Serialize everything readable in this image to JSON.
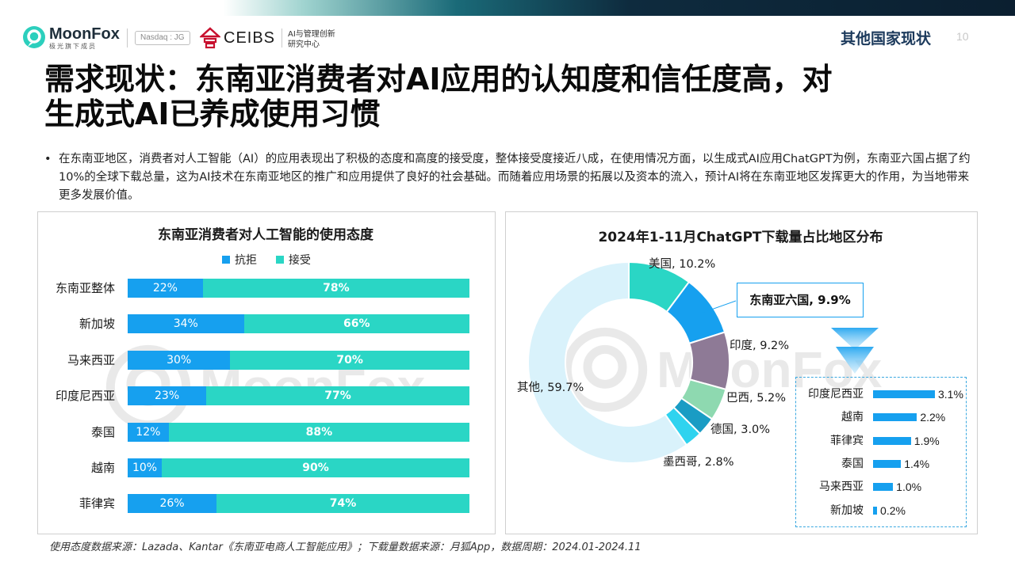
{
  "header": {
    "logo_name": "MoonFox",
    "logo_sub": "极光旗下成员",
    "nasdaq": "Nasdaq : JG",
    "ceibs_name": "CEIBS",
    "ceibs_sub_line1": "AI与管理创新",
    "ceibs_sub_line2": "研究中心",
    "section": "其他国家现状",
    "page": "10"
  },
  "title": {
    "line1": "需求现状：东南亚消费者对AI应用的认知度和信任度高，对",
    "line2": "生成式AI已养成使用习惯"
  },
  "bullet": {
    "dot": "•",
    "text": "在东南亚地区，消费者对人工智能（AI）的应用表现出了积极的态度和高度的接受度，整体接受度接近八成，在使用情况方面，以生成式AI应用ChatGPT为例，东南亚六国占据了约10%的全球下载总量，这为AI技术在东南亚地区的推广和应用提供了良好的社会基础。而随着应用场景的拓展以及资本的流入，预计AI将在东南亚地区发挥更大的作用，为当地带来更多发展价值。"
  },
  "watermark": "MoonFox",
  "colors": {
    "reject": "#16a0ef",
    "accept": "#2ad6c5",
    "title_blue": "#1c3a5c",
    "donut": [
      "#2ad6c5",
      "#16a0ef",
      "#8e7a96",
      "#8ed9b0",
      "#1a9cc4",
      "#2fd3ef",
      "#d9f2fb"
    ]
  },
  "chart_data": [
    {
      "type": "bar",
      "orientation": "horizontal-stacked-100",
      "title": "东南亚消费者对人工智能的使用态度",
      "categories": [
        "东南亚整体",
        "新加坡",
        "马来西亚",
        "印度尼西亚",
        "泰国",
        "越南",
        "菲律宾"
      ],
      "series": [
        {
          "name": "抗拒",
          "values": [
            22,
            34,
            30,
            23,
            12,
            10,
            26
          ],
          "labels": [
            "22%",
            "34%",
            "30%",
            "23%",
            "12%",
            "10%",
            "26%"
          ]
        },
        {
          "name": "接受",
          "values": [
            78,
            66,
            70,
            77,
            88,
            90,
            74
          ],
          "labels": [
            "78%",
            "66%",
            "70%",
            "77%",
            "88%",
            "90%",
            "74%"
          ]
        }
      ],
      "legend": "top"
    },
    {
      "type": "pie",
      "variant": "donut",
      "title": "2024年1-11月ChatGPT下载量占比地区分布",
      "categories": [
        "美国",
        "东南亚六国",
        "印度",
        "巴西",
        "德国",
        "墨西哥",
        "其他"
      ],
      "values": [
        10.2,
        9.9,
        9.2,
        5.2,
        3.0,
        2.8,
        59.7
      ],
      "labels": [
        "美国, 10.2%",
        "东南亚六国, 9.9%",
        "印度, 9.2%",
        "巴西, 5.2%",
        "德国, 3.0%",
        "墨西哥, 2.8%",
        "其他, 59.7%"
      ]
    },
    {
      "type": "bar",
      "orientation": "horizontal",
      "categories": [
        "印度尼西亚",
        "越南",
        "菲律宾",
        "泰国",
        "马来西亚",
        "新加坡"
      ],
      "values": [
        3.1,
        2.2,
        1.9,
        1.4,
        1.0,
        0.2
      ],
      "labels": [
        "3.1%",
        "2.2%",
        "1.9%",
        "1.4%",
        "1.0%",
        "0.2%"
      ]
    }
  ],
  "source": "使用态度数据来源：Lazada、Kantar《东南亚电商人工智能应用》；下载量数据来源：月狐App，数据周期：2024.01-2024.11"
}
